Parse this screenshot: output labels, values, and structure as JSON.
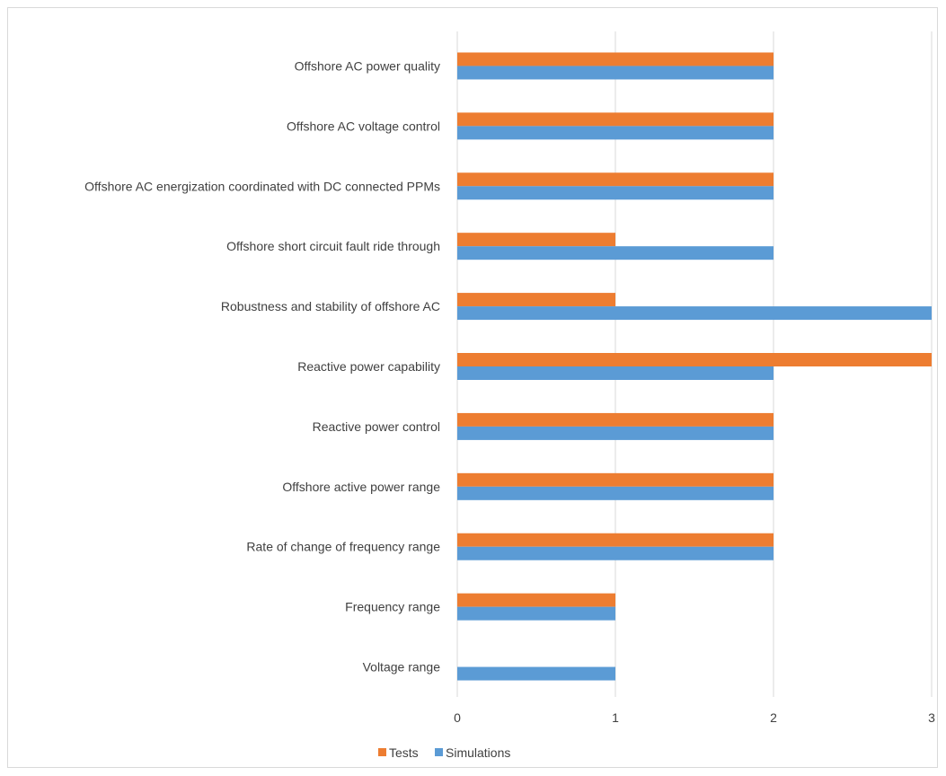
{
  "chart_data": {
    "type": "bar",
    "orientation": "horizontal",
    "categories": [
      "Offshore AC power quality",
      "Offshore AC voltage control",
      "Offshore AC energization coordinated with DC connected PPMs",
      "Offshore short circuit fault ride through",
      "Robustness and stability of offshore AC",
      "Reactive power capability",
      "Reactive power control",
      "Offshore active power range",
      "Rate of change of frequency range",
      "Frequency range",
      "Voltage range"
    ],
    "series": [
      {
        "name": "Tests",
        "color": "#ED7D31",
        "values": [
          2,
          2,
          2,
          1,
          1,
          3,
          2,
          2,
          2,
          1,
          0
        ]
      },
      {
        "name": "Simulations",
        "color": "#5B9BD5",
        "values": [
          2,
          2,
          2,
          2,
          3,
          2,
          2,
          2,
          2,
          1,
          1
        ]
      }
    ],
    "xlim": [
      0,
      3
    ],
    "xticks": [
      "0",
      "1",
      "2",
      "3"
    ],
    "grid": true,
    "legend_position": "bottom"
  }
}
